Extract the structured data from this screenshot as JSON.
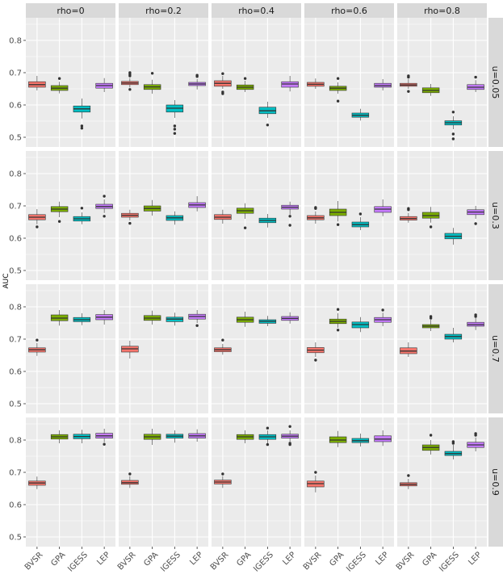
{
  "chart_data": {
    "type": "box",
    "ylabel": "AUC",
    "ylim": [
      0.47,
      0.87
    ],
    "yticks": [
      "0.5",
      "0.6",
      "0.7",
      "0.8"
    ],
    "categories": [
      "BVSR",
      "GPA",
      "IGESS",
      "LEP"
    ],
    "category_colors": {
      "BVSR": "#F8766D",
      "GPA": "#7CAE00",
      "IGESS": "#00BFC4",
      "LEP": "#C77CFF"
    },
    "cols": [
      "rho=0",
      "rho=0.2",
      "rho=0.4",
      "rho=0.6",
      "rho=0.8"
    ],
    "rows": [
      "u=0.05",
      "u=0.3",
      "u=0.7",
      "u=0.9"
    ],
    "panel_bg": "#EBEBEB",
    "strip_bg": "#D9D9D9",
    "grid_color": "#FFFFFF",
    "boxes": [
      [
        [
          [
            0.645,
            0.655,
            0.663,
            0.672,
            0.69,
            []
          ],
          [
            0.636,
            0.645,
            0.652,
            0.66,
            0.672,
            [
              0.682
            ]
          ],
          [
            0.558,
            0.578,
            0.588,
            0.597,
            0.62,
            [
              0.535,
              0.528
            ]
          ],
          [
            0.64,
            0.652,
            0.66,
            0.667,
            0.683,
            []
          ]
        ],
        [
          [
            0.654,
            0.663,
            0.668,
            0.673,
            0.683,
            [
              0.7,
              0.695,
              0.69,
              0.648
            ]
          ],
          [
            0.635,
            0.648,
            0.656,
            0.663,
            0.678,
            [
              0.698
            ]
          ],
          [
            0.56,
            0.578,
            0.59,
            0.6,
            0.615,
            [
              0.535,
              0.525,
              0.512
            ]
          ],
          [
            0.648,
            0.66,
            0.665,
            0.67,
            0.68,
            [
              0.692,
              0.688
            ]
          ]
        ],
        [
          [
            0.65,
            0.658,
            0.667,
            0.675,
            0.69,
            [
              0.697,
              0.64,
              0.635
            ]
          ],
          [
            0.64,
            0.648,
            0.655,
            0.662,
            0.675,
            [
              0.682
            ]
          ],
          [
            0.56,
            0.573,
            0.582,
            0.593,
            0.61,
            [
              0.538
            ]
          ],
          [
            0.642,
            0.655,
            0.665,
            0.672,
            0.69,
            []
          ]
        ],
        [
          [
            0.65,
            0.658,
            0.664,
            0.67,
            0.682,
            []
          ],
          [
            0.635,
            0.645,
            0.652,
            0.658,
            0.67,
            [
              0.682,
              0.612
            ]
          ],
          [
            0.552,
            0.562,
            0.568,
            0.575,
            0.588,
            []
          ],
          [
            0.645,
            0.655,
            0.66,
            0.667,
            0.68,
            []
          ]
        ],
        [
          [
            0.65,
            0.658,
            0.662,
            0.667,
            0.68,
            [
              0.69,
              0.686,
              0.642
            ]
          ],
          [
            0.628,
            0.638,
            0.645,
            0.653,
            0.665,
            []
          ],
          [
            0.525,
            0.538,
            0.545,
            0.551,
            0.565,
            [
              0.578,
              0.51,
              0.495
            ]
          ],
          [
            0.64,
            0.648,
            0.655,
            0.663,
            0.677,
            [
              0.686
            ]
          ]
        ]
      ],
      [
        [
          [
            0.643,
            0.657,
            0.665,
            0.673,
            0.69,
            [
              0.635
            ]
          ],
          [
            0.665,
            0.682,
            0.69,
            0.698,
            0.713,
            [
              0.652
            ]
          ],
          [
            0.643,
            0.653,
            0.66,
            0.667,
            0.68,
            [
              0.693
            ]
          ],
          [
            0.678,
            0.692,
            0.698,
            0.705,
            0.72,
            [
              0.73,
              0.668
            ]
          ]
        ],
        [
          [
            0.655,
            0.665,
            0.671,
            0.677,
            0.688,
            [
              0.646
            ]
          ],
          [
            0.67,
            0.684,
            0.692,
            0.7,
            0.718,
            []
          ],
          [
            0.642,
            0.655,
            0.663,
            0.67,
            0.683,
            []
          ],
          [
            0.683,
            0.695,
            0.703,
            0.71,
            0.73,
            []
          ]
        ],
        [
          [
            0.645,
            0.658,
            0.665,
            0.673,
            0.688,
            []
          ],
          [
            0.66,
            0.677,
            0.685,
            0.693,
            0.708,
            [
              0.632
            ]
          ],
          [
            0.633,
            0.648,
            0.655,
            0.662,
            0.675,
            []
          ],
          [
            0.673,
            0.69,
            0.696,
            0.702,
            0.713,
            [
              0.668,
              0.64
            ]
          ]
        ],
        [
          [
            0.645,
            0.657,
            0.663,
            0.67,
            0.683,
            [
              0.695,
              0.692
            ]
          ],
          [
            0.652,
            0.67,
            0.68,
            0.69,
            0.715,
            [
              0.642
            ]
          ],
          [
            0.625,
            0.635,
            0.642,
            0.65,
            0.665,
            [
              0.675
            ]
          ],
          [
            0.668,
            0.68,
            0.69,
            0.698,
            0.72,
            []
          ]
        ],
        [
          [
            0.648,
            0.656,
            0.661,
            0.667,
            0.678,
            [
              0.692,
              0.688
            ]
          ],
          [
            0.648,
            0.662,
            0.67,
            0.68,
            0.697,
            [
              0.635
            ]
          ],
          [
            0.58,
            0.598,
            0.606,
            0.615,
            0.632,
            []
          ],
          [
            0.66,
            0.673,
            0.681,
            0.688,
            0.7,
            [
              0.645
            ]
          ]
        ]
      ],
      [
        [
          [
            0.648,
            0.66,
            0.667,
            0.673,
            0.688,
            [
              0.697
            ]
          ],
          [
            0.742,
            0.757,
            0.765,
            0.775,
            0.79,
            []
          ],
          [
            0.743,
            0.754,
            0.76,
            0.767,
            0.78,
            []
          ],
          [
            0.745,
            0.76,
            0.768,
            0.776,
            0.79,
            []
          ]
        ],
        [
          [
            0.64,
            0.66,
            0.67,
            0.678,
            0.695,
            []
          ],
          [
            0.745,
            0.758,
            0.765,
            0.773,
            0.788,
            []
          ],
          [
            0.742,
            0.754,
            0.762,
            0.768,
            0.782,
            []
          ],
          [
            0.75,
            0.762,
            0.77,
            0.777,
            0.79,
            [
              0.742
            ]
          ]
        ],
        [
          [
            0.652,
            0.661,
            0.667,
            0.673,
            0.685,
            [
              0.697
            ]
          ],
          [
            0.738,
            0.752,
            0.76,
            0.768,
            0.785,
            []
          ],
          [
            0.74,
            0.749,
            0.755,
            0.76,
            0.772,
            []
          ],
          [
            0.748,
            0.758,
            0.764,
            0.77,
            0.783,
            []
          ]
        ],
        [
          [
            0.645,
            0.658,
            0.666,
            0.674,
            0.69,
            [
              0.635
            ]
          ],
          [
            0.735,
            0.748,
            0.755,
            0.762,
            0.78,
            [
              0.792,
              0.728
            ]
          ],
          [
            0.722,
            0.735,
            0.745,
            0.753,
            0.768,
            []
          ],
          [
            0.74,
            0.752,
            0.76,
            0.767,
            0.782,
            [
              0.79
            ]
          ]
        ],
        [
          [
            0.645,
            0.655,
            0.663,
            0.673,
            0.69,
            []
          ],
          [
            0.725,
            0.735,
            0.74,
            0.745,
            0.76,
            [
              0.77,
              0.765
            ]
          ],
          [
            0.69,
            0.7,
            0.708,
            0.715,
            0.735,
            []
          ],
          [
            0.728,
            0.74,
            0.745,
            0.752,
            0.765,
            [
              0.775,
              0.77
            ]
          ]
        ]
      ],
      [
        [
          [
            0.648,
            0.66,
            0.667,
            0.673,
            0.687,
            []
          ],
          [
            0.79,
            0.803,
            0.81,
            0.817,
            0.83,
            []
          ],
          [
            0.79,
            0.804,
            0.811,
            0.818,
            0.832,
            []
          ],
          [
            0.793,
            0.806,
            0.813,
            0.821,
            0.835,
            [
              0.787
            ]
          ]
        ],
        [
          [
            0.652,
            0.663,
            0.668,
            0.675,
            0.688,
            [
              0.695
            ]
          ],
          [
            0.785,
            0.802,
            0.81,
            0.818,
            0.835,
            []
          ],
          [
            0.792,
            0.806,
            0.812,
            0.818,
            0.83,
            []
          ],
          [
            0.795,
            0.806,
            0.813,
            0.82,
            0.833,
            []
          ]
        ],
        [
          [
            0.652,
            0.664,
            0.67,
            0.676,
            0.688,
            [
              0.695
            ]
          ],
          [
            0.79,
            0.802,
            0.81,
            0.817,
            0.83,
            []
          ],
          [
            0.79,
            0.802,
            0.81,
            0.817,
            0.83,
            [
              0.837,
              0.786
            ]
          ],
          [
            0.795,
            0.806,
            0.812,
            0.818,
            0.83,
            [
              0.842,
              0.79,
              0.786
            ]
          ]
        ],
        [
          [
            0.638,
            0.655,
            0.665,
            0.673,
            0.69,
            [
              0.7
            ]
          ],
          [
            0.778,
            0.792,
            0.8,
            0.81,
            0.828,
            []
          ],
          [
            0.78,
            0.792,
            0.798,
            0.805,
            0.82,
            []
          ],
          [
            0.782,
            0.795,
            0.803,
            0.813,
            0.83,
            []
          ]
        ],
        [
          [
            0.648,
            0.658,
            0.663,
            0.668,
            0.68,
            [
              0.69
            ]
          ],
          [
            0.755,
            0.768,
            0.777,
            0.785,
            0.8,
            [
              0.815
            ]
          ],
          [
            0.74,
            0.752,
            0.758,
            0.765,
            0.785,
            [
              0.795,
              0.79
            ]
          ],
          [
            0.765,
            0.777,
            0.785,
            0.793,
            0.808,
            [
              0.82,
              0.815
            ]
          ]
        ]
      ]
    ]
  }
}
